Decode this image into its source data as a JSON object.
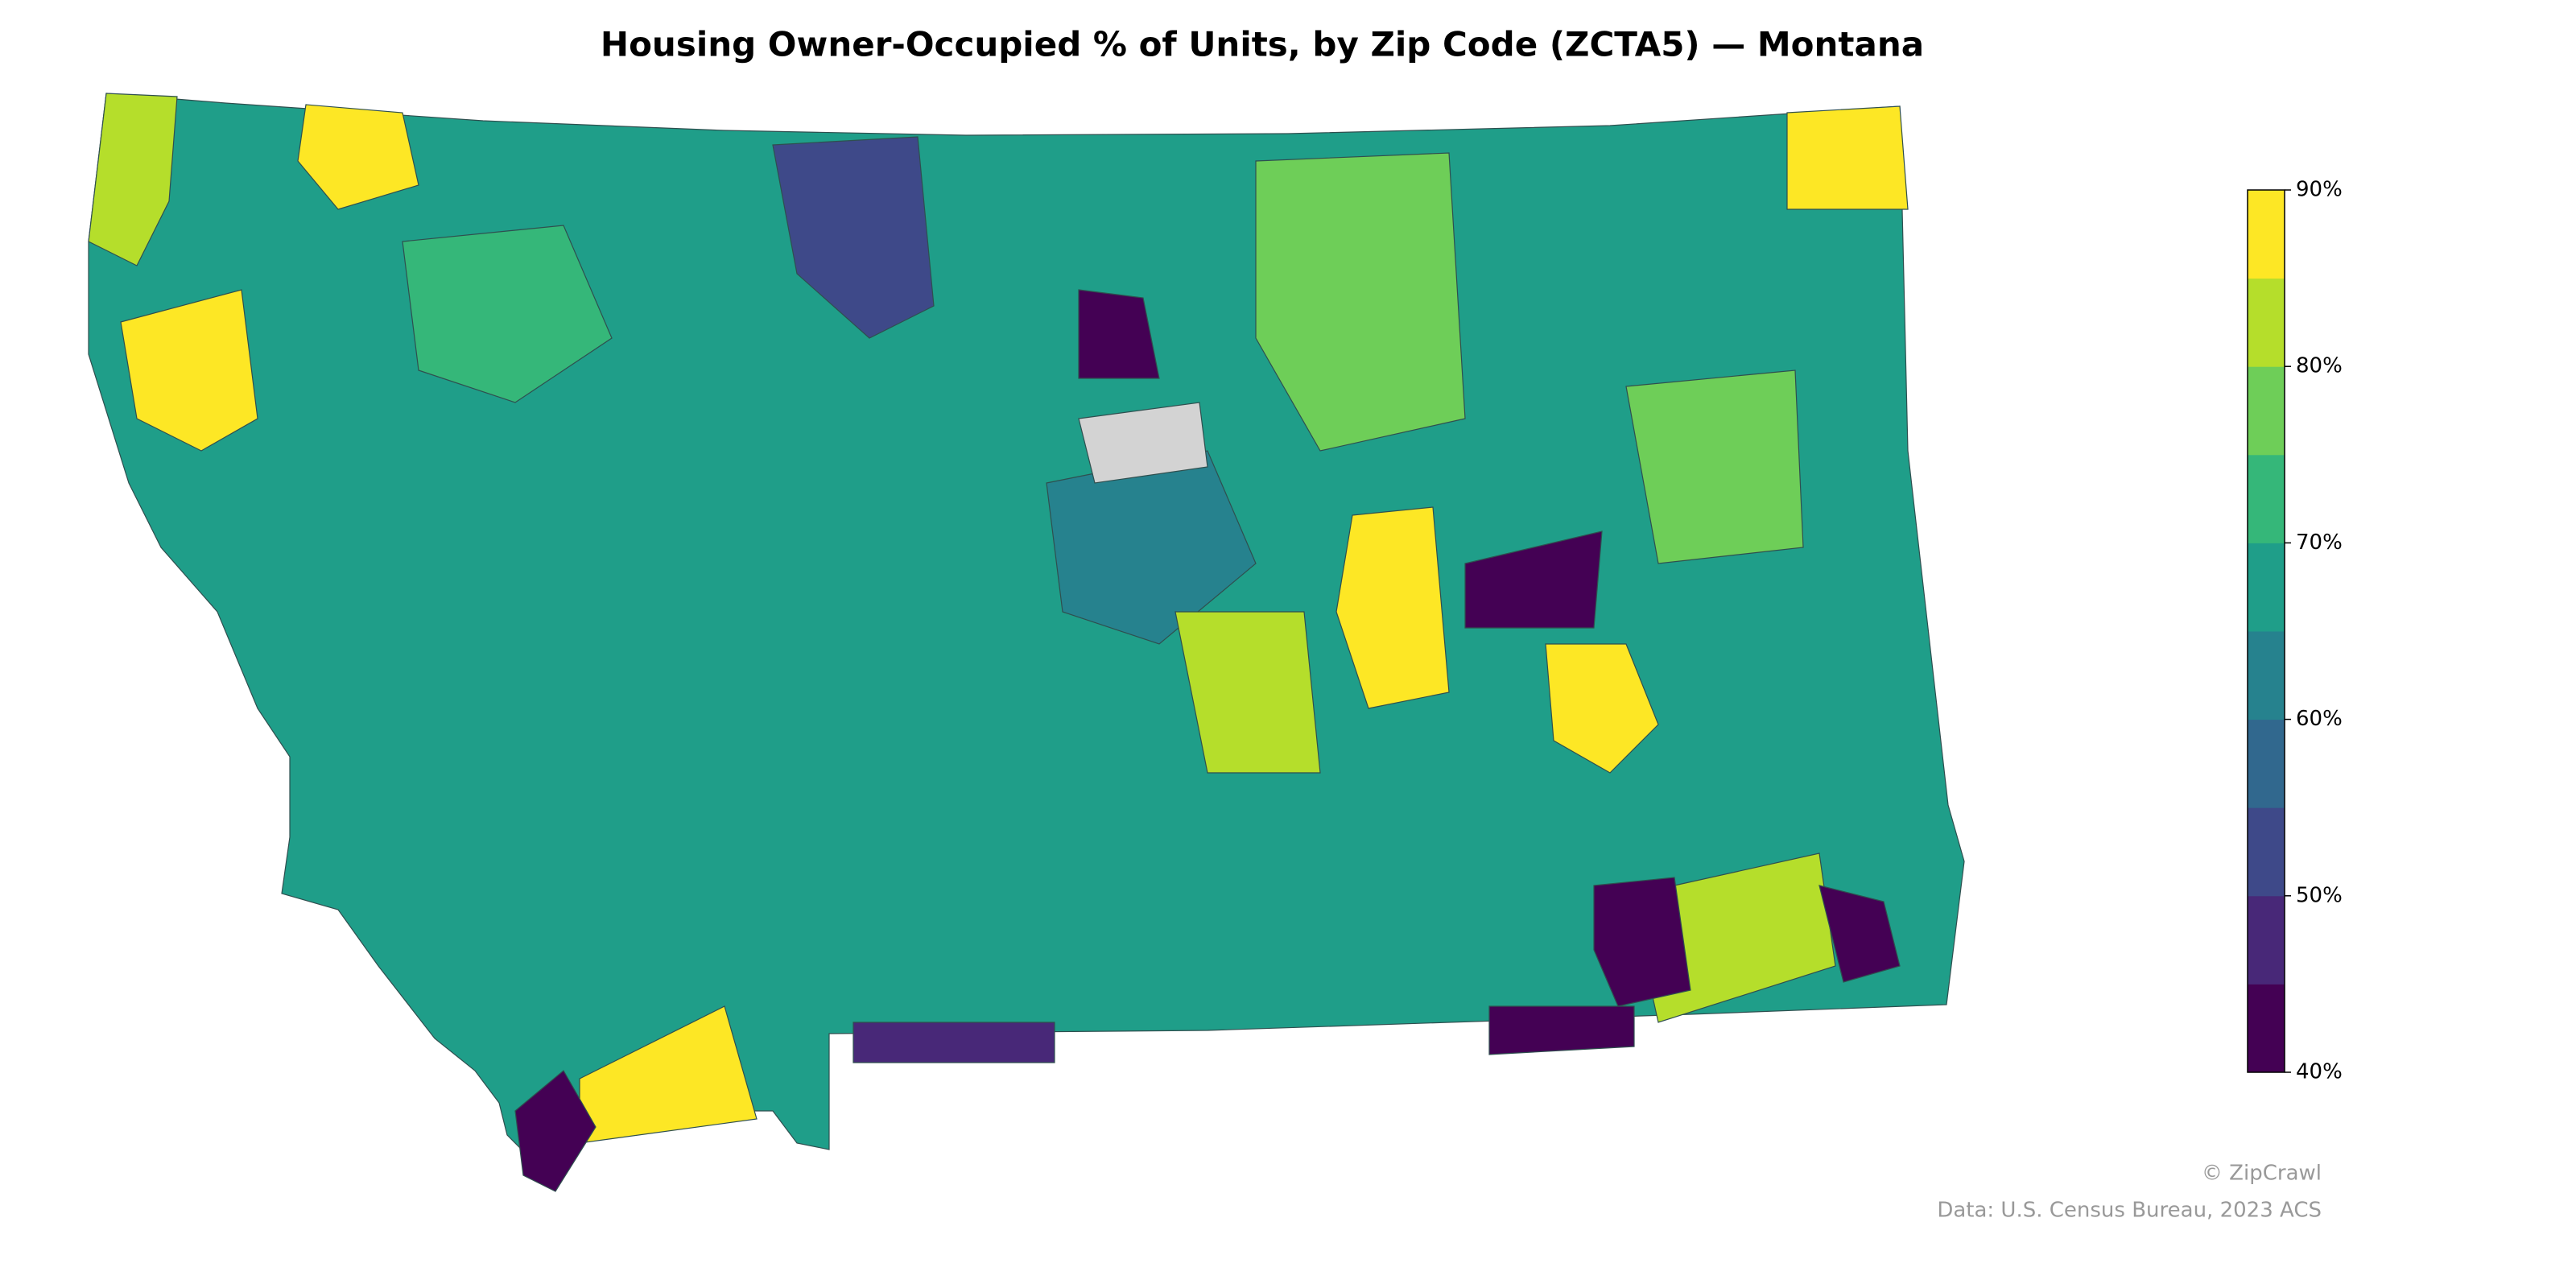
{
  "chart_data": {
    "type": "choropleth",
    "title": "Housing Owner-Occupied % of Units, by Zip Code (ZCTA5) — Montana",
    "colorbar": {
      "lim": [
        40,
        90
      ],
      "ticks": [
        {
          "value": 40,
          "label": "40%"
        },
        {
          "value": 50,
          "label": "50%"
        },
        {
          "value": 60,
          "label": "60%"
        },
        {
          "value": 70,
          "label": "70%"
        },
        {
          "value": 80,
          "label": "80%"
        },
        {
          "value": 90,
          "label": "90%"
        }
      ],
      "colors": [
        "#440154",
        "#482878",
        "#3e4989",
        "#31688e",
        "#26828e",
        "#1f9e89",
        "#35b779",
        "#6ece58",
        "#b5de2b",
        "#fde725"
      ]
    },
    "credit": "© ZipCrawl",
    "source": "Data: U.S. Census Bureau, 2023 ACS"
  }
}
